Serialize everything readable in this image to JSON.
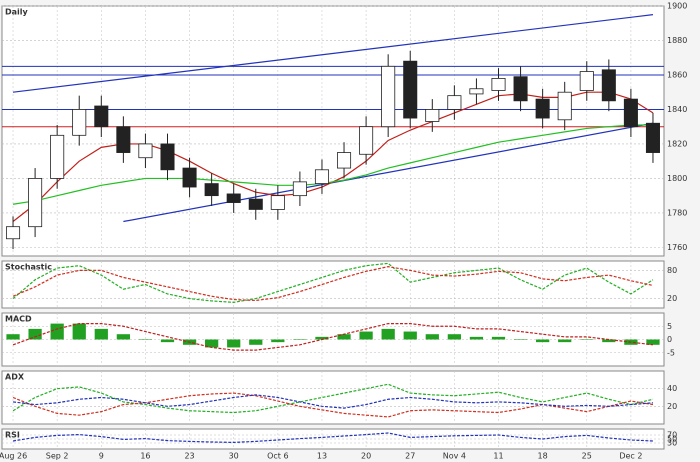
{
  "chart_data": [
    {
      "type": "candlestick",
      "title": "Daily",
      "categories": [
        "Aug 26",
        null,
        "Sep 2",
        null,
        "9",
        null,
        "16",
        null,
        "23",
        null,
        "30",
        null,
        "Oct 6",
        null,
        "13",
        null,
        "20",
        null,
        "27",
        null,
        "Nov 4",
        null,
        "11",
        null,
        "18",
        null,
        "25",
        null,
        "Dec 2",
        null
      ],
      "open": [
        1765,
        1772,
        1800,
        1825,
        1842,
        1830,
        1812,
        1820,
        1806,
        1797,
        1791,
        1788,
        1782,
        1790,
        1797,
        1806,
        1814,
        1830,
        1868,
        1833,
        1840,
        1849,
        1851,
        1859,
        1846,
        1834,
        1851,
        1863,
        1846,
        1832
      ],
      "high": [
        1778,
        1806,
        1831,
        1848,
        1848,
        1836,
        1826,
        1826,
        1812,
        1803,
        1797,
        1794,
        1796,
        1804,
        1811,
        1821,
        1836,
        1872,
        1874,
        1846,
        1854,
        1858,
        1864,
        1865,
        1852,
        1856,
        1868,
        1869,
        1852,
        1838
      ],
      "low": [
        1759,
        1766,
        1794,
        1819,
        1824,
        1809,
        1806,
        1799,
        1789,
        1784,
        1780,
        1776,
        1776,
        1784,
        1791,
        1800,
        1808,
        1824,
        1829,
        1827,
        1834,
        1843,
        1845,
        1839,
        1829,
        1828,
        1845,
        1839,
        1824,
        1809
      ],
      "close": [
        1772,
        1800,
        1825,
        1840,
        1830,
        1815,
        1820,
        1805,
        1795,
        1790,
        1786,
        1782,
        1790,
        1798,
        1805,
        1815,
        1830,
        1865,
        1835,
        1840,
        1848,
        1852,
        1858,
        1845,
        1835,
        1850,
        1862,
        1845,
        1830,
        1815
      ],
      "up_color": "#ffffff",
      "down_color": "#222222",
      "series": [
        {
          "color": "#c0201a",
          "values": [
            1775,
            1785,
            1798,
            1810,
            1818,
            1820,
            1820,
            1816,
            1810,
            1803,
            1797,
            1792,
            1790,
            1791,
            1795,
            1801,
            1810,
            1822,
            1828,
            1833,
            1838,
            1843,
            1848,
            1849,
            1847,
            1847,
            1850,
            1850,
            1846,
            1838
          ]
        },
        {
          "color": "#22c022",
          "values": [
            1785,
            1787,
            1790,
            1793,
            1796,
            1798,
            1800,
            1800,
            1800,
            1799,
            1798,
            1797,
            1796,
            1796,
            1797,
            1799,
            1802,
            1806,
            1809,
            1812,
            1815,
            1818,
            1821,
            1823,
            1825,
            1827,
            1829,
            1830,
            1831,
            1831
          ]
        }
      ],
      "trendlines": [
        {
          "color": "#2233bb",
          "x": [
            0,
            29
          ],
          "y": [
            1850,
            1895
          ]
        },
        {
          "color": "#2233bb",
          "x": [
            5,
            29
          ],
          "y": [
            1775,
            1832
          ]
        }
      ],
      "levels": [
        {
          "value": 1865,
          "color": "#2233bb"
        },
        {
          "value": 1860,
          "color": "#2233bb"
        },
        {
          "value": 1840,
          "color": "#2233bb"
        },
        {
          "value": 1830,
          "color": "#d02020"
        }
      ],
      "ylim": [
        1755,
        1900
      ],
      "yticks": [
        1760,
        1780,
        1800,
        1820,
        1840,
        1860,
        1880,
        1900
      ],
      "grid": true
    },
    {
      "type": "line",
      "title": "Stochastic",
      "ylim": [
        0,
        100
      ],
      "yticks": [
        20,
        80
      ],
      "grid": true,
      "dashed": true,
      "series": [
        {
          "color": "#22b022",
          "values": [
            20,
            60,
            85,
            90,
            70,
            40,
            50,
            30,
            20,
            15,
            12,
            20,
            35,
            50,
            65,
            80,
            90,
            95,
            55,
            65,
            75,
            80,
            85,
            60,
            40,
            70,
            85,
            55,
            30,
            60
          ]
        },
        {
          "color": "#d03020",
          "values": [
            25,
            45,
            70,
            80,
            80,
            65,
            55,
            45,
            35,
            25,
            18,
            16,
            22,
            35,
            50,
            65,
            78,
            88,
            80,
            70,
            68,
            72,
            78,
            75,
            62,
            58,
            65,
            70,
            58,
            48
          ]
        }
      ]
    },
    {
      "type": "line",
      "title": "MACD",
      "ylim": [
        -10,
        10
      ],
      "yticks": [
        -5,
        0,
        5
      ],
      "grid": true,
      "dashed": true,
      "series": [
        {
          "color": "#22a022",
          "style": "bar",
          "values": [
            2,
            4,
            6,
            6,
            4,
            2,
            0,
            -1,
            -2,
            -3,
            -3,
            -2,
            -1,
            0,
            1,
            2,
            3,
            4,
            3,
            2,
            2,
            1,
            1,
            0,
            -1,
            -1,
            0,
            -1,
            -2,
            -2
          ]
        },
        {
          "color": "#c02020",
          "values": [
            -2,
            1,
            4,
            6,
            6,
            5,
            3,
            1,
            -1,
            -3,
            -4,
            -4,
            -3,
            -2,
            0,
            2,
            4,
            6,
            6,
            5,
            5,
            4,
            4,
            3,
            2,
            1,
            1,
            0,
            -1,
            -2
          ]
        }
      ]
    },
    {
      "type": "line",
      "title": "ADX",
      "ylim": [
        0,
        60
      ],
      "yticks": [
        20,
        40
      ],
      "grid": true,
      "dashed": true,
      "series": [
        {
          "color": "#22b022",
          "values": [
            15,
            30,
            40,
            42,
            35,
            25,
            22,
            18,
            15,
            14,
            13,
            15,
            20,
            25,
            30,
            35,
            40,
            45,
            35,
            33,
            32,
            34,
            36,
            30,
            25,
            30,
            35,
            28,
            22,
            28
          ]
        },
        {
          "color": "#d03020",
          "values": [
            30,
            20,
            12,
            10,
            14,
            22,
            24,
            28,
            32,
            34,
            35,
            32,
            26,
            20,
            16,
            12,
            10,
            8,
            15,
            16,
            15,
            14,
            13,
            17,
            22,
            18,
            14,
            20,
            26,
            22
          ]
        },
        {
          "color": "#2233bb",
          "values": [
            25,
            22,
            24,
            28,
            30,
            28,
            24,
            20,
            22,
            26,
            30,
            33,
            30,
            25,
            20,
            18,
            22,
            28,
            30,
            28,
            25,
            24,
            25,
            24,
            22,
            20,
            21,
            20,
            22,
            24
          ]
        }
      ]
    },
    {
      "type": "line",
      "title": "RSI",
      "ylim": [
        0,
        100
      ],
      "yticks": [
        30,
        50,
        70
      ],
      "grid": true,
      "dashed": true,
      "series": [
        {
          "color": "#2233bb",
          "values": [
            40,
            58,
            68,
            72,
            62,
            48,
            52,
            42,
            38,
            35,
            33,
            38,
            45,
            52,
            58,
            65,
            72,
            80,
            58,
            62,
            66,
            68,
            70,
            58,
            50,
            62,
            68,
            55,
            45,
            40
          ]
        }
      ]
    }
  ]
}
